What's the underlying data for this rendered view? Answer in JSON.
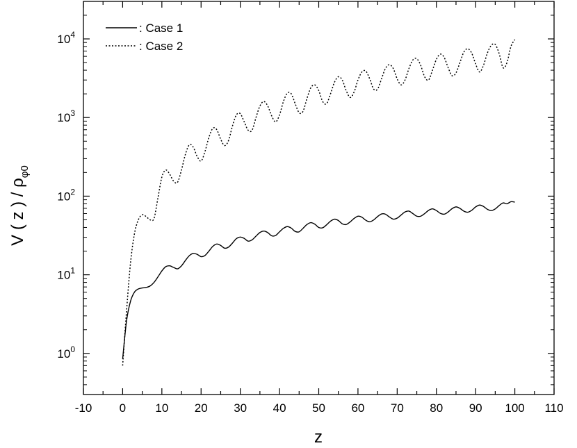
{
  "chart_data": {
    "type": "line",
    "title": "",
    "xlabel": "z",
    "ylabel_main": "V ( z ) / ρ",
    "ylabel_sub": "φ0",
    "xlim": [
      -10,
      110
    ],
    "x_ticks": [
      "-10",
      "0",
      "10",
      "20",
      "30",
      "40",
      "50",
      "60",
      "70",
      "80",
      "90",
      "100",
      "110"
    ],
    "y_scale": "log",
    "ylim": [
      0.3,
      30000
    ],
    "y_ticks": [
      {
        "base": "10",
        "exp": "0",
        "value": 1
      },
      {
        "base": "10",
        "exp": "1",
        "value": 10
      },
      {
        "base": "10",
        "exp": "2",
        "value": 100
      },
      {
        "base": "10",
        "exp": "3",
        "value": 1000
      },
      {
        "base": "10",
        "exp": "4",
        "value": 10000
      }
    ],
    "grid": false,
    "legend_position": "top-left",
    "series": [
      {
        "name": "Case 1",
        "style": "solid",
        "color": "#000000",
        "x": [
          0,
          1,
          2,
          3,
          4,
          5,
          6,
          7,
          8,
          9,
          10,
          11,
          12,
          13,
          14,
          15,
          16,
          17,
          18,
          19,
          20,
          21,
          22,
          23,
          24,
          25,
          26,
          27,
          28,
          29,
          30,
          31,
          32,
          33,
          34,
          35,
          36,
          37,
          38,
          39,
          40,
          41,
          42,
          43,
          44,
          45,
          46,
          47,
          48,
          49,
          50,
          51,
          52,
          53,
          54,
          55,
          56,
          57,
          58,
          59,
          60,
          61,
          62,
          63,
          64,
          65,
          66,
          67,
          68,
          69,
          70,
          71,
          72,
          73,
          74,
          75,
          76,
          77,
          78,
          79,
          80,
          81,
          82,
          83,
          84,
          85,
          86,
          87,
          88,
          89,
          90,
          91,
          92,
          93,
          94,
          95,
          96,
          97,
          98,
          99,
          100
        ],
        "values": [
          0.85,
          2.6,
          4.6,
          6.0,
          6.6,
          6.8,
          6.9,
          7.2,
          8.0,
          9.4,
          11.2,
          12.7,
          13.0,
          12.4,
          11.9,
          13.0,
          15.2,
          17.5,
          18.7,
          18.2,
          17.0,
          17.6,
          20.0,
          23.0,
          24.6,
          23.6,
          21.8,
          22.5,
          25.3,
          28.8,
          30.2,
          29.0,
          26.8,
          27.8,
          31.0,
          34.5,
          36.0,
          34.4,
          31.3,
          31.6,
          35.2,
          39.0,
          41.0,
          39.2,
          35.6,
          35.2,
          39.0,
          43.6,
          46.0,
          44.0,
          40.0,
          39.6,
          43.2,
          48.0,
          51.0,
          49.0,
          44.5,
          43.6,
          47.0,
          52.0,
          55.6,
          54.0,
          49.4,
          47.2,
          49.8,
          55.0,
          59.4,
          59.0,
          54.4,
          51.0,
          52.6,
          57.6,
          63.0,
          64.6,
          60.0,
          55.6,
          55.6,
          60.0,
          66.0,
          69.0,
          65.6,
          60.5,
          59.0,
          63.0,
          69.4,
          73.0,
          70.0,
          64.5,
          62.5,
          66.0,
          73.0,
          77.0,
          74.0,
          68.0,
          65.6,
          68.8,
          76.0,
          82.0,
          80.0,
          85.0,
          84.0
        ]
      },
      {
        "name": "Case 2",
        "style": "dotted",
        "color": "#000000",
        "x": [
          0,
          1,
          2,
          3,
          4,
          5,
          6,
          7,
          8,
          9,
          10,
          11,
          12,
          13,
          14,
          15,
          16,
          17,
          18,
          19,
          20,
          21,
          22,
          23,
          24,
          25,
          26,
          27,
          28,
          29,
          30,
          31,
          32,
          33,
          34,
          35,
          36,
          37,
          38,
          39,
          40,
          41,
          42,
          43,
          44,
          45,
          46,
          47,
          48,
          49,
          50,
          51,
          52,
          53,
          54,
          55,
          56,
          57,
          58,
          59,
          60,
          61,
          62,
          63,
          64,
          65,
          66,
          67,
          68,
          69,
          70,
          71,
          72,
          73,
          74,
          75,
          76,
          77,
          78,
          79,
          80,
          81,
          82,
          83,
          84,
          85,
          86,
          87,
          88,
          89,
          90,
          91,
          92,
          93,
          94,
          95,
          96,
          97,
          98,
          99,
          100
        ],
        "values": [
          0.7,
          3.5,
          14,
          33,
          50,
          58,
          55,
          50,
          52,
          95,
          175,
          215,
          190,
          155,
          150,
          215,
          340,
          450,
          420,
          320,
          280,
          370,
          560,
          730,
          700,
          530,
          440,
          510,
          780,
          1080,
          1120,
          880,
          690,
          690,
          1000,
          1400,
          1600,
          1400,
          1050,
          880,
          1080,
          1600,
          2050,
          2000,
          1500,
          1150,
          1200,
          1750,
          2400,
          2600,
          2200,
          1600,
          1500,
          2000,
          2800,
          3300,
          3000,
          2200,
          1800,
          2100,
          3000,
          3800,
          3900,
          3100,
          2300,
          2300,
          3100,
          4200,
          4700,
          4200,
          3100,
          2600,
          3000,
          4200,
          5400,
          5600,
          4600,
          3300,
          3000,
          4000,
          5500,
          6400,
          5800,
          4300,
          3400,
          3700,
          5000,
          6800,
          7500,
          6600,
          4800,
          3800,
          4600,
          6600,
          8300,
          8500,
          6500,
          4300,
          5000,
          8000,
          9800
        ]
      }
    ]
  }
}
